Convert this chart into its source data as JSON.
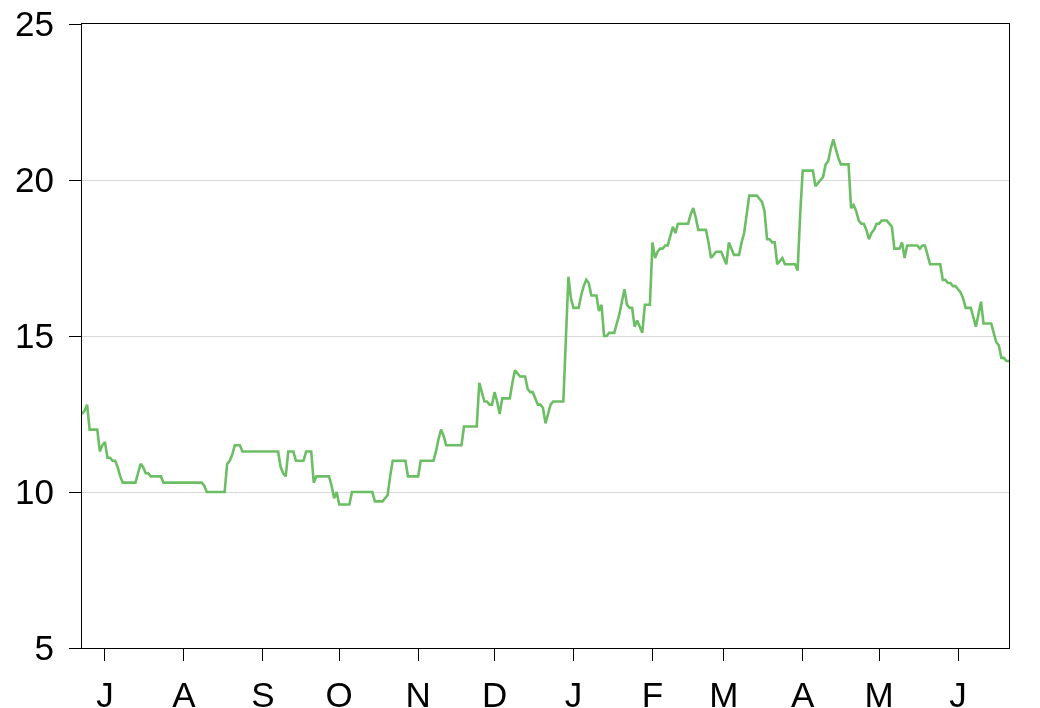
{
  "chart_data": {
    "type": "line",
    "color": "#6cbe64",
    "categories": [
      null,
      null,
      null,
      null,
      null,
      null,
      null,
      null,
      null,
      "J",
      null,
      null,
      null,
      null,
      null,
      null,
      null,
      null,
      null,
      null,
      null,
      null,
      null,
      null,
      null,
      null,
      null,
      null,
      null,
      null,
      null,
      null,
      null,
      null,
      null,
      null,
      null,
      null,
      null,
      null,
      "A",
      null,
      null,
      null,
      null,
      null,
      null,
      null,
      null,
      null,
      null,
      null,
      null,
      null,
      null,
      null,
      null,
      null,
      null,
      null,
      null,
      null,
      null,
      null,
      null,
      null,
      null,
      null,
      null,
      null,
      null,
      "S",
      null,
      null,
      null,
      null,
      null,
      null,
      null,
      null,
      null,
      null,
      null,
      null,
      null,
      null,
      null,
      null,
      null,
      null,
      null,
      null,
      null,
      null,
      null,
      null,
      null,
      null,
      null,
      null,
      null,
      "O",
      null,
      null,
      null,
      null,
      null,
      null,
      null,
      null,
      null,
      null,
      null,
      null,
      null,
      null,
      null,
      null,
      null,
      null,
      null,
      null,
      null,
      null,
      null,
      null,
      null,
      null,
      null,
      null,
      null,
      null,
      "N",
      null,
      null,
      null,
      null,
      null,
      null,
      null,
      null,
      null,
      null,
      null,
      null,
      null,
      null,
      null,
      null,
      null,
      null,
      null,
      null,
      null,
      null,
      null,
      null,
      null,
      null,
      null,
      null,
      null,
      "D",
      null,
      null,
      null,
      null,
      null,
      null,
      null,
      null,
      null,
      null,
      null,
      null,
      null,
      null,
      null,
      null,
      null,
      null,
      null,
      null,
      null,
      null,
      null,
      null,
      null,
      null,
      null,
      null,
      null,
      null,
      "J",
      null,
      null,
      null,
      null,
      null,
      null,
      null,
      null,
      null,
      null,
      null,
      null,
      null,
      null,
      null,
      null,
      null,
      null,
      null,
      null,
      null,
      null,
      null,
      null,
      null,
      null,
      null,
      null,
      null,
      null,
      "F",
      null,
      null,
      null,
      null,
      null,
      null,
      null,
      null,
      null,
      null,
      null,
      null,
      null,
      null,
      null,
      null,
      null,
      null,
      null,
      null,
      null,
      null,
      null,
      null,
      null,
      null,
      null,
      "M",
      null,
      null,
      null,
      null,
      null,
      null,
      null,
      null,
      null,
      null,
      null,
      null,
      null,
      null,
      null,
      null,
      null,
      null,
      null,
      null,
      null,
      null,
      null,
      null,
      null,
      null,
      null,
      null,
      null,
      null,
      "A",
      null,
      null,
      null,
      null,
      null,
      null,
      null,
      null,
      null,
      null,
      null,
      null,
      null,
      null,
      null,
      null,
      null,
      null,
      null,
      null,
      null,
      null,
      null,
      null,
      null,
      null,
      null,
      null,
      null,
      "M",
      null,
      null,
      null,
      null,
      null,
      null,
      null,
      null,
      null,
      null,
      null,
      null,
      null,
      null,
      null,
      null,
      null,
      null,
      null,
      null,
      null,
      null,
      null,
      null,
      null,
      null,
      null,
      null,
      null,
      null,
      "J",
      null,
      null,
      null,
      null,
      null,
      null,
      null,
      null,
      null,
      null,
      null,
      null,
      null,
      null,
      null,
      null,
      null,
      null,
      null,
      null
    ],
    "values": [
      12.5,
      12.6,
      12.8,
      12.0,
      12.0,
      12.0,
      12.0,
      11.3,
      11.5,
      11.6,
      11.1,
      11.1,
      11.0,
      11.0,
      10.8,
      10.5,
      10.3,
      10.3,
      10.3,
      10.3,
      10.3,
      10.3,
      10.6,
      10.9,
      10.8,
      10.6,
      10.6,
      10.5,
      10.5,
      10.5,
      10.5,
      10.5,
      10.3,
      10.3,
      10.3,
      10.3,
      10.3,
      10.3,
      10.3,
      10.3,
      10.3,
      10.3,
      10.3,
      10.3,
      10.3,
      10.3,
      10.3,
      10.3,
      10.2,
      10.0,
      10.0,
      10.0,
      10.0,
      10.0,
      10.0,
      10.0,
      10.0,
      10.9,
      11.0,
      11.2,
      11.5,
      11.5,
      11.5,
      11.3,
      11.3,
      11.3,
      11.3,
      11.3,
      11.3,
      11.3,
      11.3,
      11.3,
      11.3,
      11.3,
      11.3,
      11.3,
      11.3,
      11.3,
      10.8,
      10.6,
      10.5,
      11.3,
      11.3,
      11.3,
      11.0,
      11.0,
      11.0,
      11.0,
      11.3,
      11.3,
      11.3,
      10.3,
      10.5,
      10.5,
      10.5,
      10.5,
      10.5,
      10.5,
      10.2,
      9.8,
      10.0,
      9.6,
      9.6,
      9.6,
      9.6,
      9.6,
      10.0,
      10.0,
      10.0,
      10.0,
      10.0,
      10.0,
      10.0,
      10.0,
      10.0,
      9.7,
      9.7,
      9.7,
      9.7,
      9.8,
      9.9,
      10.5,
      11.0,
      11.0,
      11.0,
      11.0,
      11.0,
      11.0,
      10.5,
      10.5,
      10.5,
      10.5,
      10.5,
      11.0,
      11.0,
      11.0,
      11.0,
      11.0,
      11.0,
      11.3,
      11.7,
      12.0,
      11.8,
      11.5,
      11.5,
      11.5,
      11.5,
      11.5,
      11.5,
      11.5,
      12.1,
      12.1,
      12.1,
      12.1,
      12.1,
      12.1,
      13.5,
      13.2,
      12.9,
      12.9,
      12.8,
      12.8,
      13.2,
      12.9,
      12.5,
      13.0,
      13.0,
      13.0,
      13.0,
      13.5,
      13.9,
      13.8,
      13.7,
      13.7,
      13.7,
      13.3,
      13.2,
      13.2,
      13.0,
      12.8,
      12.8,
      12.7,
      12.2,
      12.5,
      12.8,
      12.9,
      12.9,
      12.9,
      12.9,
      12.9,
      14.9,
      16.9,
      16.2,
      15.9,
      15.9,
      15.9,
      16.3,
      16.6,
      16.8,
      16.7,
      16.3,
      16.3,
      16.3,
      15.8,
      16.0,
      15.0,
      15.0,
      15.1,
      15.1,
      15.1,
      15.4,
      15.7,
      16.1,
      16.5,
      16.0,
      15.9,
      15.9,
      15.3,
      15.5,
      15.3,
      15.1,
      16.0,
      16.0,
      16.0,
      18.0,
      17.5,
      17.7,
      17.8,
      17.8,
      17.9,
      17.9,
      18.2,
      18.5,
      18.3,
      18.6,
      18.6,
      18.6,
      18.6,
      18.6,
      18.9,
      19.1,
      18.8,
      18.4,
      18.4,
      18.4,
      18.4,
      18.0,
      17.5,
      17.6,
      17.7,
      17.7,
      17.7,
      17.5,
      17.3,
      18.0,
      17.8,
      17.6,
      17.6,
      17.6,
      18.0,
      18.3,
      18.9,
      19.5,
      19.5,
      19.5,
      19.5,
      19.4,
      19.3,
      19.0,
      18.1,
      18.1,
      18.0,
      18.0,
      17.3,
      17.4,
      17.5,
      17.3,
      17.3,
      17.3,
      17.3,
      17.3,
      17.1,
      18.9,
      20.3,
      20.3,
      20.3,
      20.3,
      20.3,
      19.8,
      19.9,
      20.0,
      20.1,
      20.5,
      20.6,
      21.0,
      21.3,
      21.0,
      20.7,
      20.5,
      20.5,
      20.5,
      20.5,
      19.1,
      19.2,
      19.0,
      18.7,
      18.6,
      18.6,
      18.4,
      18.1,
      18.3,
      18.4,
      18.6,
      18.6,
      18.7,
      18.7,
      18.7,
      18.6,
      18.5,
      17.8,
      17.8,
      17.8,
      18.0,
      17.5,
      17.9,
      17.9,
      17.9,
      17.9,
      17.9,
      17.8,
      17.9,
      17.9,
      17.6,
      17.3,
      17.3,
      17.3,
      17.3,
      17.3,
      16.8,
      16.8,
      16.7,
      16.7,
      16.6,
      16.6,
      16.5,
      16.4,
      16.2,
      15.9,
      15.9,
      15.9,
      15.6,
      15.3,
      15.7,
      16.1,
      15.4,
      15.4,
      15.4,
      15.4,
      15.1,
      14.8,
      14.7,
      14.3,
      14.3,
      14.2,
      14.2
    ],
    "ylim": [
      5,
      25
    ],
    "yticks": [
      5,
      10,
      15,
      20,
      25
    ],
    "grid": "y"
  }
}
